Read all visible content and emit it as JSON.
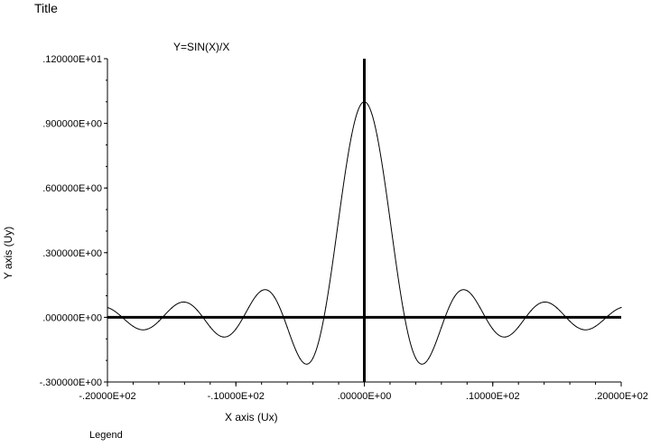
{
  "window": {
    "title": "Title"
  },
  "legend": {
    "label": "Legend"
  },
  "chart_data": {
    "type": "line",
    "title": "Y=SIN(X)/X",
    "xlabel": "X axis (Ux)",
    "ylabel": "Y axis (Uy)",
    "xlim": [
      -20,
      20
    ],
    "ylim": [
      -0.3,
      1.2
    ],
    "x_ticks": [
      -20,
      -10,
      0,
      10,
      20
    ],
    "x_tick_labels": [
      "-.20000E+02",
      "-.10000E+02",
      ".00000E+00",
      ".10000E+02",
      ".20000E+02"
    ],
    "y_ticks": [
      -0.3,
      0,
      0.3,
      0.6,
      0.9,
      1.2
    ],
    "y_tick_labels": [
      "-.300000E+00",
      ".000000E+00",
      ".300000E+00",
      ".600000E+00",
      ".900000E+00",
      ".120000E+01"
    ],
    "grid": false,
    "zero_lines": true,
    "series": [
      {
        "function": "sin(x)/x",
        "color": "#000000",
        "x": [
          -20,
          -19,
          -18,
          -17,
          -16,
          -15,
          -14,
          -13,
          -12,
          -11,
          -10,
          -9,
          -8,
          -7,
          -6,
          -5,
          -4,
          -3,
          -2,
          -1,
          0,
          1,
          2,
          3,
          4,
          5,
          6,
          7,
          8,
          9,
          10,
          11,
          12,
          13,
          14,
          15,
          16,
          17,
          18,
          19,
          20
        ],
        "y": [
          0.0456,
          0.0079,
          -0.0417,
          -0.0566,
          -0.018,
          0.0433,
          0.0707,
          0.0323,
          -0.0447,
          -0.0909,
          -0.0544,
          0.0458,
          0.1237,
          0.0939,
          -0.0466,
          -0.1918,
          -0.1892,
          0.047,
          0.4546,
          0.8415,
          1.0,
          0.8415,
          0.4546,
          0.047,
          -0.1892,
          -0.1918,
          -0.0466,
          0.0939,
          0.1237,
          0.0458,
          -0.0544,
          -0.0909,
          -0.0447,
          0.0323,
          0.0707,
          0.0433,
          -0.018,
          -0.0566,
          -0.0417,
          0.0079,
          0.0456
        ]
      }
    ]
  }
}
